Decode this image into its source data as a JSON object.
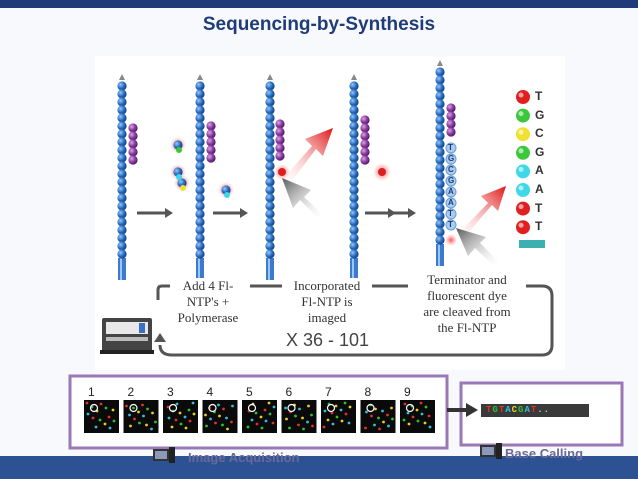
{
  "title": "Sequencing-by-Synthesis",
  "steps": {
    "step1": "Add 4 Fl-\nNTP's +\nPolymerase",
    "step2": "Incorporated\nFl-NTP is\nimaged",
    "step3": "Terminator and\nfluorescent dye\nare cleaved from\nthe Fl-NTP"
  },
  "repeat_label": "X 36 - 101",
  "base_sequence": [
    {
      "letter": "T",
      "color": "#e02020"
    },
    {
      "letter": "G",
      "color": "#3cc83c"
    },
    {
      "letter": "C",
      "color": "#f0e030"
    },
    {
      "letter": "G",
      "color": "#3cc83c"
    },
    {
      "letter": "A",
      "color": "#40d8e8"
    },
    {
      "letter": "A",
      "color": "#40d8e8"
    },
    {
      "letter": "T",
      "color": "#e02020"
    },
    {
      "letter": "T",
      "color": "#e02020"
    }
  ],
  "strand_letters": [
    "T",
    "G",
    "C",
    "G",
    "A",
    "A",
    "T",
    "T"
  ],
  "image_numbers": [
    "1",
    "2",
    "3",
    "4",
    "5",
    "6",
    "7",
    "8",
    "9"
  ],
  "image_acquisition_label": "Image Acquisition",
  "base_calling_label": "Base Calling",
  "base_call_read": [
    {
      "ch": "T",
      "color": "#e03030"
    },
    {
      "ch": "G",
      "color": "#30c030"
    },
    {
      "ch": "T",
      "color": "#e03030"
    },
    {
      "ch": "A",
      "color": "#30c0d8"
    },
    {
      "ch": "C",
      "color": "#e8d020"
    },
    {
      "ch": "G",
      "color": "#30c030"
    },
    {
      "ch": "A",
      "color": "#30c0d8"
    },
    {
      "ch": "T",
      "color": "#e03030"
    },
    {
      "ch": "..",
      "color": "#cccccc"
    }
  ],
  "colors": {
    "bead": "#2a6fc4",
    "purple": "#8a3aa0",
    "frame": "#9a78b8",
    "bar_top": "#1f3c78",
    "bar_bottom": "#2c5294"
  }
}
